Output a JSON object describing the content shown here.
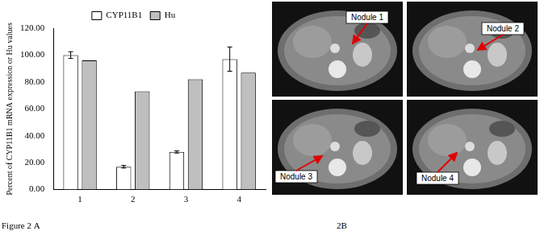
{
  "chart_data": {
    "type": "bar",
    "title": "Figure 2 A",
    "y_label": "Percent of CYP11B1 mRNA expression or Hu values",
    "categories": [
      "1",
      "2",
      "3",
      "4"
    ],
    "series": [
      {
        "name": "CYP11B1",
        "color": "#ffffff",
        "values": [
          100,
          17,
          28,
          97
        ],
        "errors": [
          2.5,
          1,
          0.8,
          9
        ]
      },
      {
        "name": "Hu",
        "color": "#bfbfbf",
        "values": [
          96,
          73,
          82,
          87
        ]
      }
    ],
    "ylim": [
      0,
      120
    ],
    "yticks": [
      {
        "value": 0,
        "label": "0.00"
      },
      {
        "value": 20,
        "label": "20.00"
      },
      {
        "value": 40,
        "label": "40.00"
      },
      {
        "value": 60,
        "label": "60.00"
      },
      {
        "value": 80,
        "label": "80.00"
      },
      {
        "value": 100,
        "label": "100.00"
      },
      {
        "value": 120,
        "label": "120.00"
      }
    ],
    "grid": false,
    "legend": "top"
  },
  "panel_b": {
    "caption": "2B",
    "labels": [
      "Nodule 1",
      "Nodule 2",
      "Nodule 3",
      "Nodule 4"
    ]
  }
}
